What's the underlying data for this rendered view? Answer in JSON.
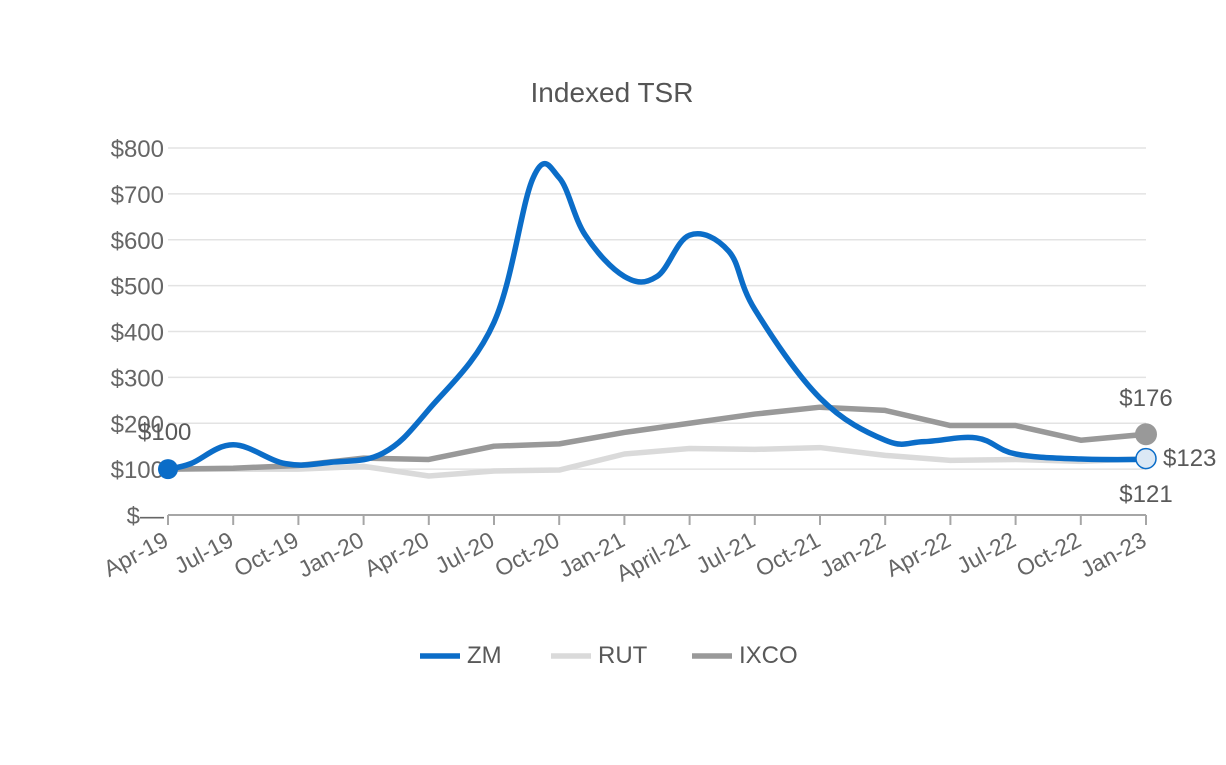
{
  "chart_data": {
    "type": "line",
    "title": "Indexed TSR",
    "xlabel": "",
    "ylabel": "",
    "categories": [
      "Apr-19",
      "Jul-19",
      "Oct-19",
      "Jan-20",
      "Apr-20",
      "Jul-20",
      "Oct-20",
      "Jan-21",
      "April-21",
      "Jul-21",
      "Oct-21",
      "Jan-22",
      "Apr-22",
      "Jul-22",
      "Oct-22",
      "Jan-23"
    ],
    "ylim": [
      0,
      800
    ],
    "yticks": [
      0,
      100,
      200,
      300,
      400,
      500,
      600,
      700,
      800
    ],
    "ytick_labels": [
      "$—",
      "$100",
      "$200",
      "$300",
      "$400",
      "$500",
      "$600",
      "$700",
      "$800"
    ],
    "grid": true,
    "legend": "bottom",
    "series": [
      {
        "name": "ZM",
        "color": "#0b6dc8",
        "smooth": true,
        "x": [
          0,
          0.35,
          1.0,
          1.8,
          2.5,
          3.3,
          4.0,
          5.0,
          5.6,
          6.0,
          6.4,
          7.0,
          7.5,
          8.0,
          8.6,
          9.0,
          10.0,
          11.0,
          11.6,
          12.4,
          13.0,
          14.0,
          15.0
        ],
        "values": [
          100,
          112,
          153,
          112,
          115,
          135,
          230,
          420,
          735,
          735,
          610,
          520,
          520,
          610,
          575,
          448,
          255,
          163,
          160,
          168,
          133,
          122,
          121
        ]
      },
      {
        "name": "RUT",
        "color": "#dadada",
        "smooth": false,
        "x": [
          0,
          1,
          2,
          3,
          4,
          5,
          6,
          7,
          8,
          9,
          10,
          11,
          12,
          13,
          14,
          15
        ],
        "values": [
          100,
          100,
          100,
          106,
          85,
          96,
          98,
          133,
          145,
          143,
          147,
          130,
          119,
          121,
          117,
          123
        ]
      },
      {
        "name": "IXCO",
        "color": "#999999",
        "smooth": false,
        "x": [
          0,
          1,
          2,
          3,
          4,
          5,
          6,
          7,
          8,
          9,
          10,
          11,
          12,
          13,
          14,
          15
        ],
        "values": [
          100,
          102,
          108,
          124,
          121,
          150,
          155,
          180,
          200,
          220,
          235,
          228,
          195,
          195,
          163,
          176
        ]
      }
    ],
    "annotations": [
      {
        "text": "$100",
        "series": "ZM",
        "at": "start"
      },
      {
        "text": "$176",
        "series": "IXCO",
        "at": "end"
      },
      {
        "text": "$123",
        "series": "RUT",
        "at": "end"
      },
      {
        "text": "$121",
        "series": "ZM",
        "at": "end"
      }
    ]
  }
}
